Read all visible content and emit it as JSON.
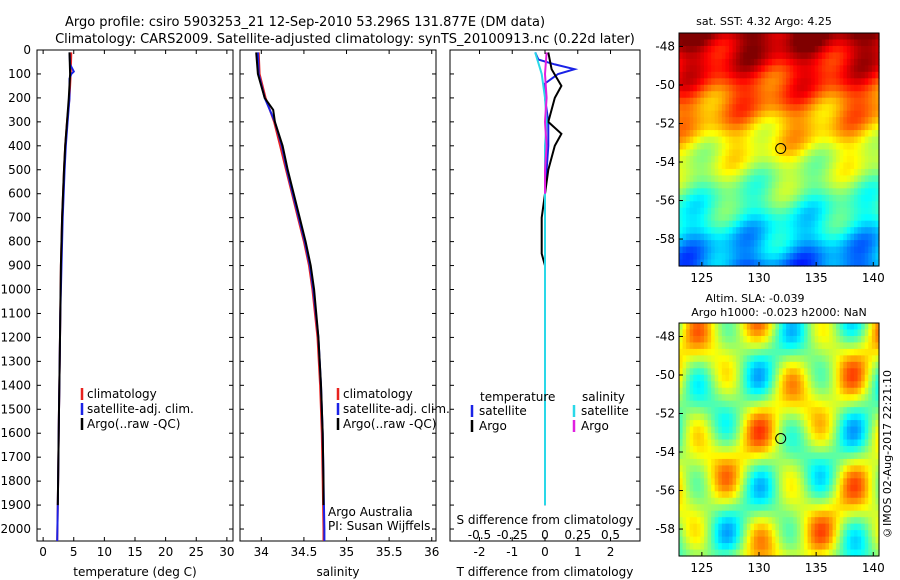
{
  "header": {
    "line1": "Argo profile: csiro 5903253_21 12-Sep-2010 53.296S 131.877E (DM data)",
    "line2": "Climatology: CARS2009. Satellite-adjusted climatology: synTS_20100913.nc (0.22d later)"
  },
  "colors": {
    "climatology": "#e8221f",
    "satellite": "#1a22e6",
    "argo": "#000000",
    "sal_satellite": "#2ad8e8",
    "sal_argo": "#e020e0"
  },
  "chart_data": [
    {
      "type": "line",
      "panel": "temperature",
      "xlabel": "temperature (deg C)",
      "ylabel": "",
      "xlim": [
        -1,
        31
      ],
      "xticks": [
        0,
        5,
        10,
        15,
        20,
        25,
        30
      ],
      "ylim": [
        2050,
        0
      ],
      "yticks": [
        0,
        100,
        200,
        300,
        400,
        500,
        600,
        700,
        800,
        900,
        1000,
        1100,
        1200,
        1300,
        1400,
        1500,
        1600,
        1700,
        1800,
        1900,
        2000
      ],
      "legend": [
        "climatology",
        "satellite-adj. clim.",
        "Argo(..raw -QC)"
      ],
      "series": [
        {
          "name": "climatology",
          "depth": [
            10,
            100,
            200,
            300,
            400,
            500,
            700,
            900,
            1100,
            1300,
            1500,
            1700,
            1900,
            2050
          ],
          "values": [
            4.6,
            4.5,
            4.3,
            3.9,
            3.6,
            3.4,
            3.1,
            2.9,
            2.8,
            2.7,
            2.6,
            2.5,
            2.4,
            2.3
          ]
        },
        {
          "name": "satellite-adj. clim.",
          "depth": [
            10,
            60,
            90,
            100,
            120,
            200,
            300,
            400,
            500,
            700,
            900,
            1100,
            1300,
            1500,
            1700,
            1900,
            2050
          ],
          "values": [
            4.3,
            4.4,
            5.0,
            4.6,
            4.3,
            4.3,
            4.0,
            3.7,
            3.5,
            3.2,
            3.0,
            2.8,
            2.7,
            2.6,
            2.5,
            2.4,
            2.3
          ]
        },
        {
          "name": "Argo(..raw -QC)",
          "depth": [
            10,
            100,
            200,
            300,
            400,
            500,
            700,
            900,
            1100,
            1300,
            1500,
            1700,
            1900
          ],
          "values": [
            4.3,
            4.4,
            4.2,
            3.9,
            3.6,
            3.4,
            3.1,
            2.9,
            2.8,
            2.7,
            2.6,
            2.5,
            2.4
          ]
        }
      ]
    },
    {
      "type": "line",
      "panel": "salinity",
      "xlabel": "salinity",
      "ylabel": "",
      "xlim": [
        33.75,
        36.05
      ],
      "xticks": [
        34,
        34.5,
        35,
        35.5,
        36
      ],
      "ylim": [
        2050,
        0
      ],
      "legend": [
        "climatology",
        "satellite-adj. clim.",
        "Argo(..raw -QC)"
      ],
      "annotation": [
        "Argo Australia",
        "PI: Susan Wijffels"
      ],
      "series": [
        {
          "name": "climatology",
          "depth": [
            10,
            100,
            200,
            300,
            400,
            500,
            600,
            700,
            800,
            900,
            1000,
            1200,
            1400,
            1600,
            1800,
            2000,
            2050
          ],
          "values": [
            33.97,
            33.98,
            34.05,
            34.15,
            34.22,
            34.29,
            34.36,
            34.43,
            34.5,
            34.56,
            34.6,
            34.66,
            34.69,
            34.71,
            34.72,
            34.73,
            34.73
          ]
        },
        {
          "name": "satellite-adj. clim.",
          "depth": [
            10,
            100,
            200,
            300,
            400,
            500,
            600,
            700,
            800,
            900,
            1000,
            1200,
            1400,
            1600,
            1800,
            2000,
            2050
          ],
          "values": [
            33.96,
            33.97,
            34.04,
            34.16,
            34.24,
            34.3,
            34.37,
            34.44,
            34.51,
            34.57,
            34.61,
            34.67,
            34.7,
            34.72,
            34.73,
            34.74,
            34.74
          ]
        },
        {
          "name": "Argo(..raw -QC)",
          "depth": [
            10,
            100,
            200,
            250,
            300,
            400,
            500,
            600,
            700,
            800,
            900,
            1000,
            1200,
            1400,
            1600,
            1800,
            1900
          ],
          "values": [
            33.94,
            33.96,
            34.04,
            34.14,
            34.16,
            34.25,
            34.31,
            34.38,
            34.45,
            34.52,
            34.58,
            34.62,
            34.67,
            34.7,
            34.72,
            34.73,
            34.73
          ]
        }
      ]
    },
    {
      "type": "line",
      "panel": "differences",
      "xlabel": "T difference from climatology",
      "xlabel_top": "S difference from climatology",
      "xlim": [
        -2.9,
        2.9
      ],
      "xticks": [
        -2,
        -1,
        0,
        1,
        2
      ],
      "xticks_top": [
        "-0.5",
        "-0.25",
        "0",
        "0.25",
        "0.5"
      ],
      "ylim": [
        2050,
        0
      ],
      "legend_headers": [
        "temperature",
        "salinity"
      ],
      "legend": [
        "satellite",
        "Argo",
        "satellite",
        "Argo"
      ],
      "series": [
        {
          "name": "satellite",
          "depth": [
            10,
            40,
            60,
            80,
            100,
            120,
            140,
            200,
            300,
            400,
            600,
            900,
            1200,
            1500,
            1900
          ],
          "values": [
            -0.3,
            -0.2,
            0.3,
            0.9,
            0.4,
            0.2,
            0.0,
            0.0,
            0.1,
            0.1,
            0.0,
            0.0,
            0.0,
            0.0,
            0.0
          ]
        },
        {
          "name": "Argo",
          "depth": [
            10,
            80,
            150,
            200,
            300,
            350,
            400,
            500,
            600,
            700,
            850,
            900,
            1000,
            1300,
            1600,
            1900
          ],
          "values": [
            0.1,
            0.2,
            0.5,
            0.3,
            0.1,
            0.5,
            0.3,
            0.1,
            0.0,
            -0.1,
            -0.1,
            0.0,
            0.0,
            0.0,
            0.0,
            0.0
          ]
        },
        {
          "name": "satellite",
          "depth": [
            10,
            100,
            200,
            300,
            400,
            600,
            800,
            1000,
            1300,
            1600,
            1900
          ],
          "values": [
            -0.3,
            -0.1,
            0.0,
            0.05,
            0.0,
            0.0,
            0.0,
            0.0,
            0.0,
            0.0,
            0.0
          ]
        },
        {
          "name": "Argo",
          "depth": [
            10,
            100,
            200,
            300,
            400,
            500,
            600
          ],
          "values": [
            0.05,
            0.0,
            0.05,
            0.0,
            0.05,
            0.0,
            0.0
          ]
        }
      ]
    },
    {
      "type": "heatmap",
      "panel": "sst",
      "title": "sat. SST: 4.32 Argo: 4.25",
      "xticks": [
        125,
        130,
        135,
        140
      ],
      "yticks": [
        -48,
        -50,
        -52,
        -54,
        -56,
        -58
      ],
      "marker": {
        "lon": 131.9,
        "lat": -53.3
      }
    },
    {
      "type": "heatmap",
      "panel": "sla",
      "title": "Altim. SLA: -0.039",
      "subtitle": "Argo h1000: -0.023 h2000: NaN",
      "xticks": [
        125,
        130,
        135,
        140
      ],
      "yticks": [
        -48,
        -50,
        -52,
        -54,
        -56,
        -58
      ],
      "marker": {
        "lon": 131.9,
        "lat": -53.3
      }
    }
  ],
  "footer": {
    "stamp": "©IMOS 02-Aug-2017 22:21:10"
  }
}
